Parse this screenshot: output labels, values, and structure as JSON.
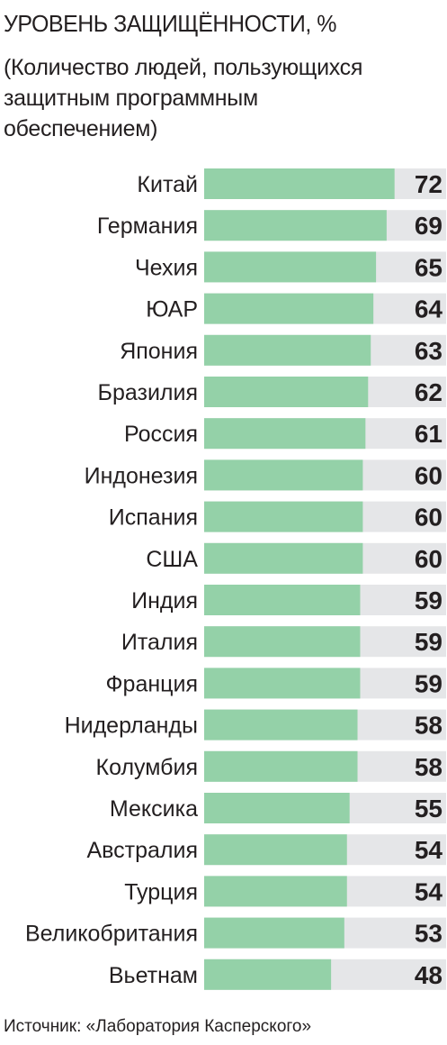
{
  "title": "УРОВЕНЬ ЗАЩИЩЁННОСТИ, %",
  "subtitle": "(Количество людей, пользующихся защитным программным обеспечением)",
  "source": "Источник: «Лаборатория Касперского»",
  "colors": {
    "bar": "#94d1a8",
    "track": "#e5e6e8",
    "text": "#231f20"
  },
  "chart_data": {
    "type": "bar",
    "orientation": "horizontal",
    "title": "УРОВЕНЬ ЗАЩИЩЁННОСТИ, %",
    "categories": [
      "Китай",
      "Германия",
      "Чехия",
      "ЮАР",
      "Япония",
      "Бразилия",
      "Россия",
      "Индонезия",
      "Испания",
      "США",
      "Индия",
      "Италия",
      "Франция",
      "Нидерланды",
      "Колумбия",
      "Мексика",
      "Австралия",
      "Турция",
      "Великобритания",
      "Вьетнам"
    ],
    "values": [
      72,
      69,
      65,
      64,
      63,
      62,
      61,
      60,
      60,
      60,
      59,
      59,
      59,
      58,
      58,
      55,
      54,
      54,
      53,
      48
    ],
    "grid": false,
    "legend": "none"
  }
}
